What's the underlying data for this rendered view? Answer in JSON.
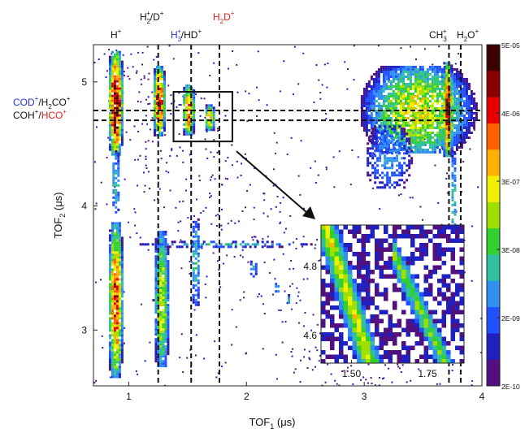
{
  "chart_data": {
    "type": "heatmap",
    "xlabel_main": "TOF",
    "xlabel_sub": "1",
    "xlabel_unit": " (μs)",
    "ylabel_main": "TOF",
    "ylabel_sub": "2",
    "ylabel_unit": " (μs)",
    "xlim": [
      0.7,
      4.0
    ],
    "ylim": [
      2.55,
      5.3
    ],
    "x_ticks": [
      1,
      2,
      3,
      4
    ],
    "y_ticks": [
      3,
      4,
      5
    ],
    "vertical_markers": [
      {
        "x": 1.25,
        "label": "H2+/D+"
      },
      {
        "x": 1.53,
        "label": "H3+/HD+"
      },
      {
        "x": 1.77,
        "label": "H2D+"
      },
      {
        "x": 3.72,
        "label": "CH3+"
      },
      {
        "x": 3.82,
        "label": "H2O+"
      }
    ],
    "horizontal_markers": [
      {
        "y": 4.77,
        "label": "COD+/H2CO+"
      },
      {
        "y": 4.69,
        "label": "COH+/HCO+"
      }
    ],
    "colorbar": {
      "tick_labels": [
        "5E-05",
        "4E-06",
        "3E-07",
        "3E-08",
        "2E-09",
        "2E-10"
      ],
      "colors": [
        "#3a0000",
        "#8a0000",
        "#e60000",
        "#ff6000",
        "#ffb000",
        "#f0f000",
        "#a0e000",
        "#30d030",
        "#30c0a0",
        "#3090f0",
        "#2050ff",
        "#2020c0",
        "#501080"
      ]
    },
    "inset": {
      "xlim": [
        1.4,
        1.87
      ],
      "ylim": [
        4.52,
        4.92
      ],
      "x_ticks": [
        "1.50",
        "1.75"
      ],
      "x_tick_values": [
        1.5,
        1.75
      ],
      "y_ticks": [
        "4.8",
        "4.6"
      ],
      "y_tick_values": [
        4.8,
        4.6
      ],
      "zoom_box": {
        "x0": 1.38,
        "x1": 1.88,
        "y0": 4.52,
        "y1": 4.92
      }
    }
  },
  "labels": {
    "h_plus": {
      "base": "H",
      "sup": "+"
    },
    "h2_d": {
      "base": "H",
      "sub": "2",
      "sup": "+",
      "rest": "/D",
      "rest_sup": "+"
    },
    "h3_hd": {
      "base": "H",
      "sub": "3",
      "sup": "+",
      "rest": "/HD",
      "rest_sup": "+"
    },
    "h2d": {
      "base": "H",
      "sub": "2",
      "rest": "D",
      "rest_sup": "+"
    },
    "ch3": {
      "base": "CH",
      "sub": "3",
      "sup": "+"
    },
    "h2o": {
      "base": "H",
      "sub": "2",
      "rest": "O",
      "rest_sup": "+"
    },
    "cod": {
      "p1": "COD",
      "p1_sup": "+",
      "p2": "/H",
      "p2_sub": "2",
      "p3": "CO",
      "p3_sup": "+"
    },
    "coh": {
      "p1": "COH",
      "p1_sup": "+",
      "p2": "/",
      "p3": "HCO",
      "p3_sup": "+"
    }
  },
  "colors": {
    "blue_label": "#2233cc",
    "red_label": "#e0201a"
  }
}
